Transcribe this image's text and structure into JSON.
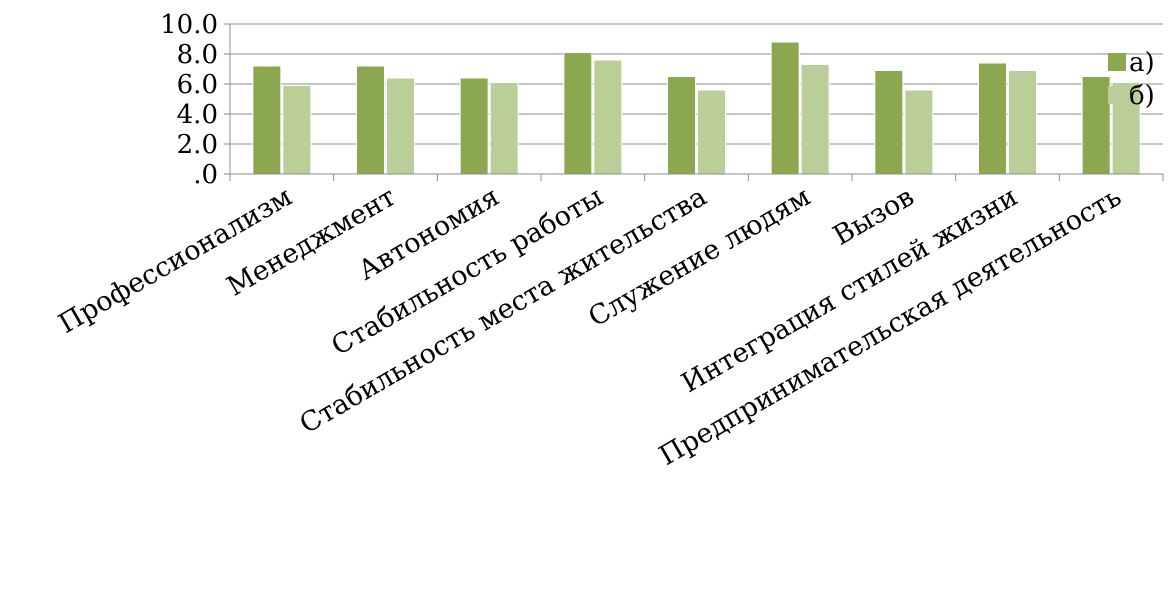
{
  "chart_data": {
    "type": "bar",
    "categories": [
      "Профессионализм",
      "Менеджмент",
      "Автономия",
      "Стабильность работы",
      "Стабильность места жительства",
      "Служение людям",
      "Вызов",
      "Интеграция стилей жизни",
      "Предпринимательская деятельность"
    ],
    "series": [
      {
        "name": "а)",
        "color": "#8BA850",
        "values": [
          7.2,
          7.2,
          6.4,
          8.1,
          6.5,
          8.8,
          6.9,
          7.4,
          6.5
        ]
      },
      {
        "name": "б)",
        "color": "#B9CF97",
        "values": [
          5.9,
          6.4,
          6.1,
          7.6,
          5.6,
          7.3,
          5.6,
          6.9,
          6.1
        ]
      }
    ],
    "y_ticks": [
      "10.0",
      "8.0",
      "6.0",
      "4.0",
      "2.0",
      ".0"
    ],
    "ylim": [
      0,
      10
    ],
    "grid": true,
    "legend_position": "right"
  }
}
